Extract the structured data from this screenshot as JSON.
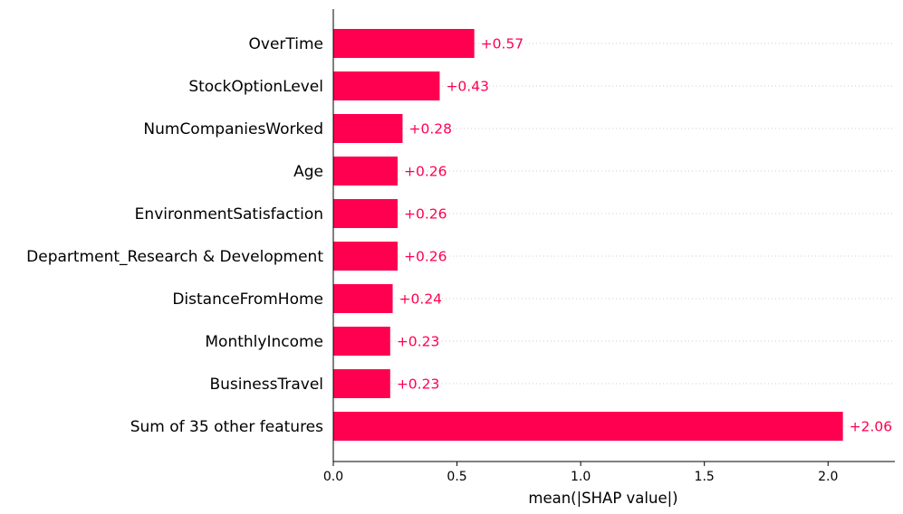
{
  "chart_data": {
    "type": "bar",
    "orientation": "horizontal",
    "categories": [
      "OverTime",
      "StockOptionLevel",
      "NumCompaniesWorked",
      "Age",
      "EnvironmentSatisfaction",
      "Department_Research & Development",
      "DistanceFromHome",
      "MonthlyIncome",
      "BusinessTravel",
      "Sum of 35 other features"
    ],
    "values": [
      0.57,
      0.43,
      0.28,
      0.26,
      0.26,
      0.26,
      0.24,
      0.23,
      0.23,
      2.06
    ],
    "value_labels": [
      "+0.57",
      "+0.43",
      "+0.28",
      "+0.26",
      "+0.26",
      "+0.26",
      "+0.24",
      "+0.23",
      "+0.23",
      "+2.06"
    ],
    "xlabel": "mean(|SHAP value|)",
    "ylabel": "",
    "xlim": [
      0,
      2.27
    ],
    "xticks": [
      0.0,
      0.5,
      1.0,
      1.5,
      2.0
    ],
    "xtick_labels": [
      "0.0",
      "0.5",
      "1.0",
      "1.5",
      "2.0"
    ],
    "grid": "horizontal dotted lines per row",
    "bar_color": "#ff0051",
    "label_color": "#ff0051"
  }
}
